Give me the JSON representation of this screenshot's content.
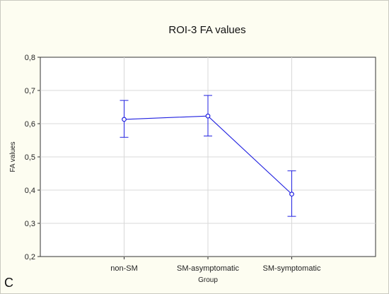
{
  "chart_data": {
    "type": "line",
    "title": "ROI-3 FA values",
    "xlabel": "Group",
    "ylabel": "FA values",
    "categories": [
      "non-SM",
      "SM-asymptomatic",
      "SM-symptomatic"
    ],
    "series": [
      {
        "values": [
          0.613,
          0.623,
          0.388
        ],
        "error_low": [
          0.559,
          0.563,
          0.321
        ],
        "error_high": [
          0.67,
          0.685,
          0.458
        ],
        "color": "#2020e0"
      }
    ],
    "ylim": [
      0.2,
      0.8
    ],
    "yticks": [
      0.2,
      0.3,
      0.4,
      0.5,
      0.6,
      0.7,
      0.8
    ],
    "ytick_labels": [
      "0,2",
      "0,3",
      "0,4",
      "0,5",
      "0,6",
      "0,7",
      "0,8"
    ],
    "grid": true,
    "panel_label": "C"
  },
  "colors": {
    "background": "#fdfdf1",
    "plot_area": "#ffffff",
    "grid": "#d8d8d8",
    "series": "#2020e0"
  }
}
